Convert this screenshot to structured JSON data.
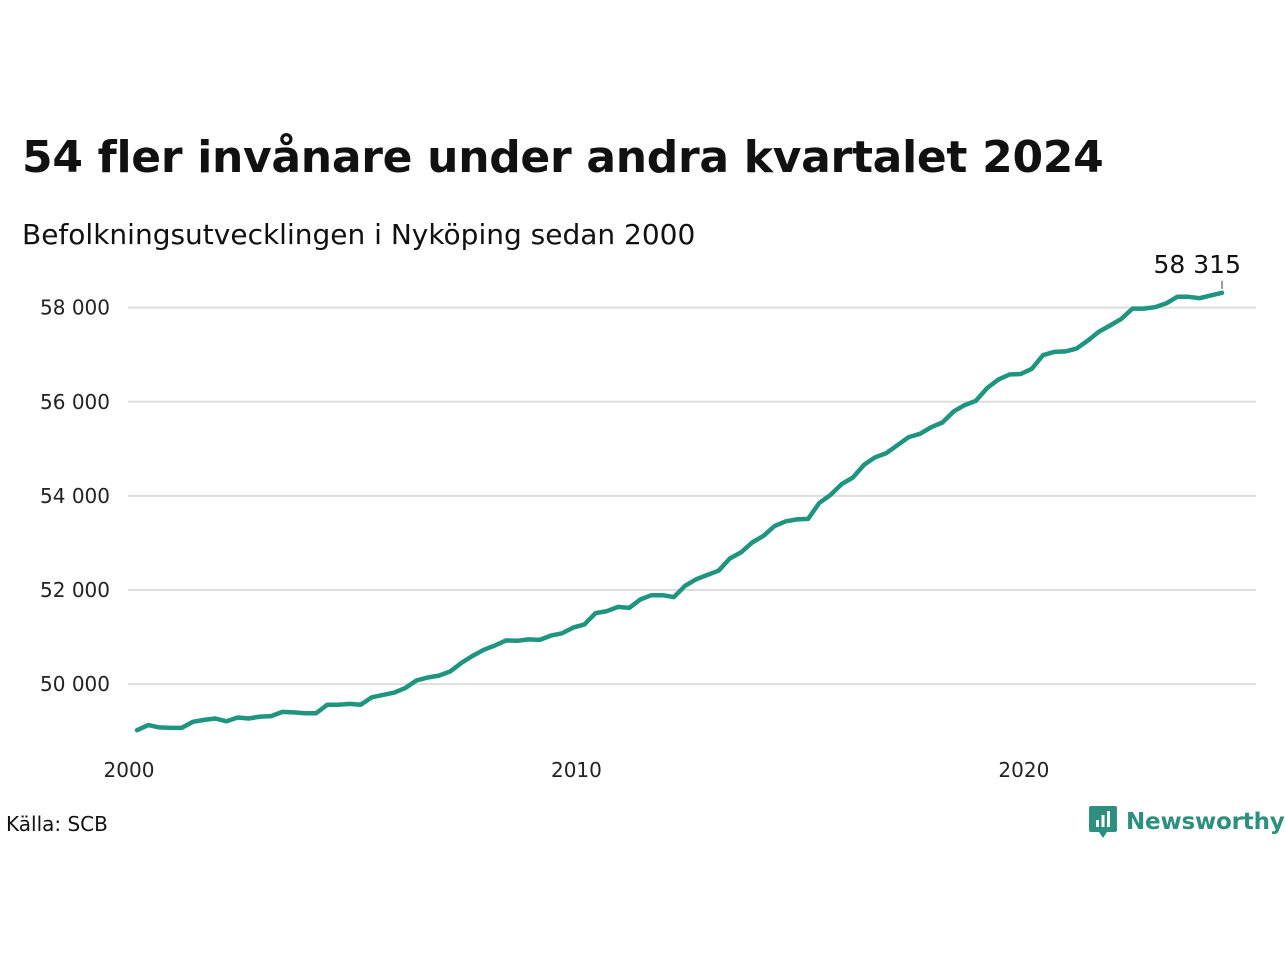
{
  "chart_data": {
    "type": "line",
    "title": "54 fler invånare under andra kvartalet 2024",
    "subtitle": "Befolkningsutvecklingen i Nyköping sedan 2000",
    "source": "Källa: SCB",
    "brand": "Newsworthy",
    "line_color": "#1f9580",
    "grid": true,
    "x_ticks": [
      2000,
      2010,
      2020
    ],
    "x_tick_labels": [
      "2000",
      "2010",
      "2020"
    ],
    "y_ticks": [
      50000,
      52000,
      54000,
      56000,
      58000
    ],
    "y_tick_labels": [
      "50 000",
      "52 000",
      "54 000",
      "56 000",
      "58 000"
    ],
    "ylim": [
      48600,
      58800
    ],
    "xlim": [
      1999.75,
      2025.0
    ],
    "end_label": "58 315",
    "series": [
      {
        "x": [
          2000.0,
          2000.25,
          2000.5,
          2000.75,
          2001.0,
          2001.25,
          2001.5,
          2001.75,
          2002.0,
          2002.25,
          2002.5,
          2002.75,
          2003.0,
          2003.25,
          2003.5,
          2003.75,
          2004.0,
          2004.25,
          2004.5,
          2004.75,
          2005.0,
          2005.25,
          2005.5,
          2005.75,
          2006.0,
          2006.25,
          2006.5,
          2006.75,
          2007.0,
          2007.25,
          2007.5,
          2007.75,
          2008.0,
          2008.25,
          2008.5,
          2008.75,
          2009.0,
          2009.25,
          2009.5,
          2009.75,
          2010.0,
          2010.25,
          2010.5,
          2010.75,
          2011.0,
          2011.25,
          2011.5,
          2011.75,
          2012.0,
          2012.25,
          2012.5,
          2012.75,
          2013.0,
          2013.25,
          2013.5,
          2013.75,
          2014.0,
          2014.25,
          2014.5,
          2014.75,
          2015.0,
          2015.25,
          2015.5,
          2015.75,
          2016.0,
          2016.25,
          2016.5,
          2016.75,
          2017.0,
          2017.25,
          2017.5,
          2017.75,
          2018.0,
          2018.25,
          2018.5,
          2018.75,
          2019.0,
          2019.25,
          2019.5,
          2019.75,
          2020.0,
          2020.25,
          2020.5,
          2020.75,
          2021.0,
          2021.25,
          2021.5,
          2021.75,
          2022.0,
          2022.25,
          2022.5,
          2022.75,
          2023.0,
          2023.25,
          2023.5,
          2023.75,
          2024.0,
          2024.25
        ],
        "values": [
          49020,
          49130,
          49080,
          49070,
          49070,
          49200,
          49240,
          49270,
          49210,
          49290,
          49270,
          49310,
          49320,
          49410,
          49400,
          49380,
          49380,
          49560,
          49560,
          49580,
          49560,
          49720,
          49770,
          49820,
          49920,
          50080,
          50140,
          50180,
          50270,
          50450,
          50600,
          50730,
          50820,
          50930,
          50920,
          50950,
          50940,
          51030,
          51080,
          51200,
          51270,
          51510,
          51550,
          51640,
          51620,
          51800,
          51890,
          51890,
          51850,
          52090,
          52230,
          52320,
          52410,
          52670,
          52800,
          53010,
          53150,
          53360,
          53460,
          53500,
          53510,
          53850,
          54020,
          54250,
          54390,
          54660,
          54820,
          54910,
          55080,
          55250,
          55320,
          55460,
          55560,
          55790,
          55930,
          56020,
          56290,
          56470,
          56580,
          56590,
          56700,
          56990,
          57060,
          57070,
          57130,
          57300,
          57490,
          57620,
          57760,
          57980,
          57980,
          58010,
          58090,
          58230,
          58230,
          58200,
          58260,
          58315
        ]
      }
    ]
  }
}
